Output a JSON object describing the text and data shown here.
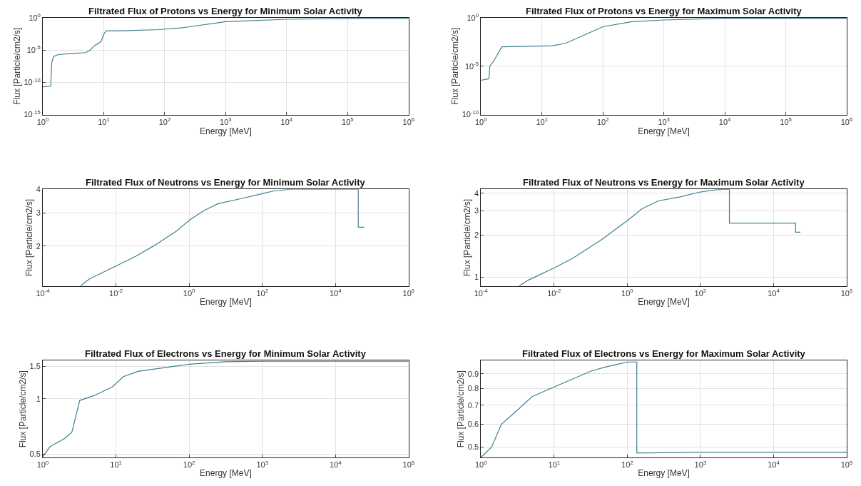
{
  "chart_data": [
    {
      "type": "line",
      "title": "Filtrated Flux of Protons vs Energy for Minimum Solar Activity",
      "xlabel": "Energy [MeV]",
      "ylabel": "Flux [Particle/cm2/s]",
      "log": "xy",
      "grid": true,
      "xlim": [
        1,
        1000000
      ],
      "xticks": [
        {
          "value": 1,
          "label": "10$^{0}$"
        },
        {
          "value": 10,
          "label": "10$^{1}$"
        },
        {
          "value": 100,
          "label": "10$^{2}$"
        },
        {
          "value": 1000,
          "label": "10$^{3}$"
        },
        {
          "value": 10000,
          "label": "10$^{4}$"
        },
        {
          "value": 100000,
          "label": "10$^{5}$"
        },
        {
          "value": 1000000,
          "label": "10$^{6}$"
        }
      ],
      "ylim": [
        1e-15,
        1
      ],
      "yticks": [
        {
          "value": 1e-15,
          "label": "10$^{-15}$"
        },
        {
          "value": 1e-10,
          "label": "10$^{-10}$"
        },
        {
          "value": 1e-05,
          "label": "10$^{-5}$"
        },
        {
          "value": 1,
          "label": "10$^{0}$"
        }
      ],
      "series": [
        {
          "color": "#3f7f8f",
          "x": [
            1,
            1.35,
            1.4,
            1.5,
            1.8,
            3,
            5,
            6,
            7,
            8,
            9,
            10,
            11,
            20,
            80,
            200,
            1000,
            10000,
            100000,
            1000000
          ],
          "values": [
            2e-11,
            2.5e-11,
            1e-07,
            1e-06,
            2e-06,
            3e-06,
            4e-06,
            1e-05,
            5e-05,
            0.0001,
            0.0002,
            0.003,
            0.01,
            0.01,
            0.015,
            0.03,
            0.25,
            0.6,
            0.8,
            0.8
          ]
        }
      ]
    },
    {
      "type": "line",
      "title": "Filtrated Flux of Protons vs Energy for Maximum Solar Activity",
      "xlabel": "Energy [MeV]",
      "ylabel": "Flux [Particle/cm2/s]",
      "log": "xy",
      "grid": true,
      "xlim": [
        1,
        1000000
      ],
      "xticks": [
        {
          "value": 1,
          "label": "10$^{0}$"
        },
        {
          "value": 10,
          "label": "10$^{1}$"
        },
        {
          "value": 100,
          "label": "10$^{2}$"
        },
        {
          "value": 1000,
          "label": "10$^{3}$"
        },
        {
          "value": 10000,
          "label": "10$^{4}$"
        },
        {
          "value": 100000,
          "label": "10$^{5}$"
        },
        {
          "value": 1000000,
          "label": "10$^{6}$"
        }
      ],
      "ylim": [
        1e-10,
        1
      ],
      "yticks": [
        {
          "value": 1e-10,
          "label": "10$^{-10}$"
        },
        {
          "value": 1e-05,
          "label": "10$^{-5}$"
        },
        {
          "value": 1,
          "label": "10$^{0}$"
        }
      ],
      "series": [
        {
          "color": "#3f7f8f",
          "x": [
            1,
            1.35,
            1.4,
            1.6,
            2.2,
            15,
            25,
            100,
            300,
            1000,
            10000,
            1000000
          ],
          "values": [
            3.5e-07,
            5e-07,
            1e-05,
            3e-05,
            0.001,
            0.0013,
            0.0025,
            0.12,
            0.4,
            0.6,
            0.9,
            0.9
          ]
        }
      ]
    },
    {
      "type": "line",
      "title": "Filtrated Flux of Neutrons vs Energy for Minimum Solar Activity",
      "xlabel": "Energy [MeV]",
      "ylabel": "Flux [Particle/cm2/s]",
      "log": "xy",
      "grid": true,
      "xlim": [
        0.0001,
        1000000
      ],
      "xticks": [
        {
          "value": 0.0001,
          "label": "10$^{-4}$"
        },
        {
          "value": 0.01,
          "label": "10$^{-2}$"
        },
        {
          "value": 1,
          "label": "10$^{0}$"
        },
        {
          "value": 100,
          "label": "10$^{2}$"
        },
        {
          "value": 10000,
          "label": "10$^{4}$"
        },
        {
          "value": 1000000,
          "label": "10$^{6}$"
        }
      ],
      "ylim": [
        1.23,
        4
      ],
      "yticks": [
        2,
        3,
        4
      ],
      "series": [
        {
          "color": "#3f7f8f",
          "x": [
            0.00107,
            0.00186,
            0.01,
            0.035,
            0.105,
            0.46,
            1,
            2.5,
            6,
            28,
            100,
            220,
            630,
            42000,
            42000,
            62000
          ],
          "values": [
            1.23,
            1.34,
            1.57,
            1.77,
            2.0,
            2.41,
            2.74,
            3.08,
            3.35,
            3.58,
            3.79,
            3.93,
            4.0,
            4.0,
            2.52,
            2.52
          ]
        }
      ]
    },
    {
      "type": "line",
      "title": "Filtrated Flux of Neutrons vs Energy for Maximum Solar Activity",
      "xlabel": "Energy [MeV]",
      "ylabel": "Flux [Particle/cm2/s]",
      "log": "xy",
      "grid": true,
      "xlim": [
        0.0001,
        1000000
      ],
      "xticks": [
        {
          "value": 0.0001,
          "label": "10$^{-4}$"
        },
        {
          "value": 0.01,
          "label": "10$^{-2}$"
        },
        {
          "value": 1,
          "label": "10$^{0}$"
        },
        {
          "value": 100,
          "label": "10$^{2}$"
        },
        {
          "value": 10000,
          "label": "10$^{4}$"
        },
        {
          "value": 1000000,
          "label": "10$^{6}$"
        }
      ],
      "ylim": [
        0.86,
        4.28
      ],
      "yticks": [
        1,
        2,
        3,
        4
      ],
      "series": [
        {
          "color": "#3f7f8f",
          "x": [
            0.0011,
            0.002,
            0.01,
            0.032,
            0.19,
            1,
            2.5,
            7,
            28,
            95,
            270,
            620,
            620,
            40000,
            40000,
            54000
          ],
          "values": [
            0.86,
            0.95,
            1.16,
            1.36,
            1.84,
            2.54,
            3.09,
            3.53,
            3.77,
            4.08,
            4.25,
            4.28,
            2.44,
            2.44,
            2.1,
            2.1
          ]
        }
      ]
    },
    {
      "type": "line",
      "title": "Filtrated Flux of Electrons vs Energy for Minimum Solar Activity",
      "xlabel": "Energy [MeV]",
      "ylabel": "Flux [Particle/cm2/s]",
      "log": "xy",
      "grid": true,
      "xlim": [
        1,
        100000
      ],
      "xticks": [
        {
          "value": 1,
          "label": "10$^{0}$"
        },
        {
          "value": 10,
          "label": "10$^{1}$"
        },
        {
          "value": 100,
          "label": "10$^{2}$"
        },
        {
          "value": 1000,
          "label": "10$^{3}$"
        },
        {
          "value": 10000,
          "label": "10$^{4}$"
        },
        {
          "value": 100000,
          "label": "10$^{5}$"
        }
      ],
      "ylim": [
        0.48,
        1.61
      ],
      "yticks": [
        0.5,
        1,
        1.5
      ],
      "series": [
        {
          "color": "#3f7f8f",
          "x": [
            1,
            1.26,
            2,
            2.5,
            3.2,
            5,
            8.9,
            12.6,
            20,
            100,
            316,
            1000,
            100000
          ],
          "values": [
            0.485,
            0.55,
            0.61,
            0.66,
            0.98,
            1.04,
            1.16,
            1.32,
            1.41,
            1.54,
            1.59,
            1.6,
            1.6
          ]
        }
      ]
    },
    {
      "type": "line",
      "title": "Filtrated Flux of Electrons vs Energy for Maximum Solar Activity",
      "xlabel": "Energy [MeV]",
      "ylabel": "Flux [Particle/cm2/s]",
      "log": "xy",
      "grid": true,
      "xlim": [
        1,
        100000
      ],
      "xticks": [
        {
          "value": 1,
          "label": "10$^{0}$"
        },
        {
          "value": 10,
          "label": "10$^{1}$"
        },
        {
          "value": 100,
          "label": "10$^{2}$"
        },
        {
          "value": 1000,
          "label": "10$^{3}$"
        },
        {
          "value": 10000,
          "label": "10$^{4}$"
        },
        {
          "value": 100000,
          "label": "10$^{5}$"
        }
      ],
      "ylim": [
        0.46,
        1.0
      ],
      "yticks": [
        0.5,
        0.6,
        0.7,
        0.8,
        0.9
      ],
      "series": [
        {
          "color": "#3f7f8f",
          "x": [
            1,
            1.4,
            1.9,
            3.2,
            5,
            10,
            32,
            50,
            100,
            135,
            135,
            200,
            1000,
            100000
          ],
          "values": [
            0.46,
            0.5,
            0.6,
            0.675,
            0.75,
            0.81,
            0.92,
            0.95,
            0.99,
            0.99,
            0.477,
            0.477,
            0.48,
            0.48
          ]
        }
      ]
    }
  ]
}
